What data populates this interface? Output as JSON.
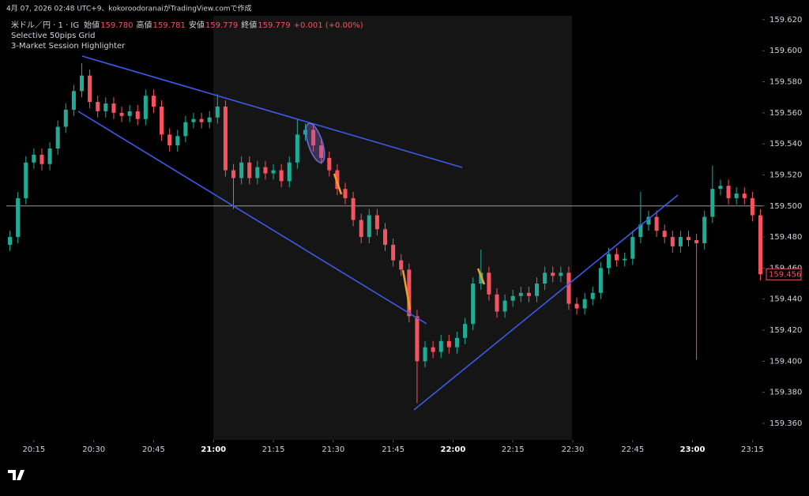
{
  "header": {
    "caption": "4月 07, 2026 02:48 UTC+9、kokoroodoranaiがTradingView.comで作成"
  },
  "legend": {
    "symbol": "米ドル／円 · 1 · IG",
    "ohlc": [
      {
        "label": "始値",
        "value": "159.780"
      },
      {
        "label": "高値",
        "value": "159.781"
      },
      {
        "label": "安値",
        "value": "159.779"
      },
      {
        "label": "終値",
        "value": "159.779"
      }
    ],
    "change": "+0.001 (+0.00%)",
    "indicators": [
      "Selective 50pips Grid",
      "3-Market Session Highlighter"
    ]
  },
  "chart_data": {
    "type": "candlestick",
    "up_color": "#22ab94",
    "down_color": "#f7525f",
    "x": [
      9,
      11,
      13,
      15,
      17,
      19,
      21,
      23,
      25,
      27,
      29,
      31,
      33,
      35,
      37,
      39,
      41,
      43,
      45,
      47,
      49,
      51,
      53,
      55,
      57,
      59,
      61,
      63,
      65,
      67,
      69,
      71,
      73,
      75,
      77,
      79,
      81,
      83,
      85,
      87,
      89,
      91,
      93,
      95,
      97,
      99,
      101,
      103,
      105,
      107,
      109,
      111,
      113,
      115,
      117,
      119,
      121,
      123,
      125,
      127,
      129,
      131,
      133,
      135,
      137,
      139,
      141,
      143,
      145,
      147,
      149,
      151,
      153,
      155,
      157,
      159,
      161,
      163,
      165,
      167,
      169,
      171,
      173,
      175,
      177,
      179,
      181,
      183,
      185,
      187,
      189,
      191,
      193,
      195,
      197
    ],
    "open": [
      159.475,
      159.48,
      159.505,
      159.528,
      159.533,
      159.527,
      159.537,
      159.551,
      159.562,
      159.574,
      159.584,
      159.567,
      159.561,
      159.566,
      159.56,
      159.558,
      159.561,
      159.556,
      159.571,
      159.564,
      159.546,
      159.539,
      159.545,
      159.554,
      159.556,
      159.554,
      159.557,
      159.564,
      159.523,
      159.518,
      159.528,
      159.518,
      159.525,
      159.521,
      159.523,
      159.516,
      159.528,
      159.546,
      159.549,
      159.539,
      159.531,
      159.523,
      159.511,
      159.505,
      159.491,
      159.48,
      159.494,
      159.485,
      159.475,
      159.465,
      159.459,
      159.429,
      159.4,
      159.409,
      159.406,
      159.413,
      159.409,
      159.415,
      159.424,
      159.45,
      159.457,
      159.443,
      159.432,
      159.439,
      159.442,
      159.444,
      159.442,
      159.45,
      159.457,
      159.455,
      159.457,
      159.437,
      159.434,
      159.44,
      159.444,
      159.46,
      159.469,
      159.465,
      159.466,
      159.48,
      159.488,
      159.493,
      159.484,
      159.48,
      159.474,
      159.48,
      159.478,
      159.476,
      159.493,
      159.511,
      159.513,
      159.505,
      159.508,
      159.505,
      159.494
    ],
    "high": [
      159.484,
      159.509,
      159.532,
      159.537,
      159.537,
      159.541,
      159.555,
      159.566,
      159.578,
      159.592,
      159.588,
      159.571,
      159.57,
      159.57,
      159.564,
      159.565,
      159.565,
      159.575,
      159.575,
      159.568,
      159.55,
      159.549,
      159.558,
      159.56,
      159.56,
      159.561,
      159.572,
      159.568,
      159.527,
      159.532,
      159.532,
      159.529,
      159.529,
      159.527,
      159.527,
      159.532,
      159.556,
      159.553,
      159.553,
      159.543,
      159.535,
      159.527,
      159.515,
      159.509,
      159.495,
      159.498,
      159.498,
      159.489,
      159.479,
      159.469,
      159.463,
      159.433,
      159.413,
      159.413,
      159.417,
      159.417,
      159.419,
      159.428,
      159.454,
      159.472,
      159.461,
      159.447,
      159.443,
      159.446,
      159.448,
      159.448,
      159.454,
      159.461,
      159.461,
      159.461,
      159.461,
      159.441,
      159.444,
      159.448,
      159.464,
      159.473,
      159.473,
      159.47,
      159.484,
      159.509,
      159.497,
      159.497,
      159.488,
      159.484,
      159.484,
      159.484,
      159.482,
      159.497,
      159.526,
      159.517,
      159.517,
      159.512,
      159.512,
      159.509,
      159.498
    ],
    "low": [
      159.471,
      159.476,
      159.501,
      159.524,
      159.523,
      159.523,
      159.533,
      159.547,
      159.558,
      159.57,
      159.563,
      159.557,
      159.557,
      159.556,
      159.554,
      159.554,
      159.552,
      159.552,
      159.56,
      159.542,
      159.535,
      159.535,
      159.541,
      159.55,
      159.55,
      159.55,
      159.553,
      159.519,
      159.498,
      159.514,
      159.514,
      159.514,
      159.517,
      159.517,
      159.512,
      159.512,
      159.524,
      159.542,
      159.535,
      159.527,
      159.519,
      159.507,
      159.501,
      159.487,
      159.476,
      159.476,
      159.481,
      159.471,
      159.461,
      159.455,
      159.425,
      159.373,
      159.396,
      159.402,
      159.402,
      159.405,
      159.405,
      159.411,
      159.42,
      159.446,
      159.439,
      159.428,
      159.428,
      159.435,
      159.438,
      159.438,
      159.438,
      159.446,
      159.451,
      159.451,
      159.433,
      159.43,
      159.43,
      159.436,
      159.44,
      159.456,
      159.461,
      159.461,
      159.462,
      159.476,
      159.484,
      159.48,
      159.476,
      159.47,
      159.47,
      159.474,
      159.401,
      159.472,
      159.489,
      159.507,
      159.501,
      159.501,
      159.501,
      159.49,
      159.452
    ],
    "close": [
      159.48,
      159.505,
      159.528,
      159.533,
      159.527,
      159.537,
      159.551,
      159.562,
      159.574,
      159.584,
      159.567,
      159.561,
      159.566,
      159.56,
      159.558,
      159.561,
      159.556,
      159.571,
      159.564,
      159.546,
      159.539,
      159.545,
      159.554,
      159.556,
      159.554,
      159.557,
      159.564,
      159.523,
      159.518,
      159.528,
      159.518,
      159.525,
      159.521,
      159.523,
      159.516,
      159.528,
      159.546,
      159.549,
      159.539,
      159.531,
      159.523,
      159.511,
      159.505,
      159.491,
      159.48,
      159.494,
      159.485,
      159.475,
      159.465,
      159.459,
      159.429,
      159.4,
      159.409,
      159.406,
      159.413,
      159.409,
      159.415,
      159.424,
      159.45,
      159.457,
      159.443,
      159.432,
      159.439,
      159.442,
      159.444,
      159.442,
      159.45,
      159.457,
      159.455,
      159.457,
      159.437,
      159.434,
      159.44,
      159.444,
      159.46,
      159.469,
      159.465,
      159.466,
      159.48,
      159.488,
      159.493,
      159.484,
      159.48,
      159.474,
      159.48,
      159.478,
      159.476,
      159.493,
      159.511,
      159.513,
      159.505,
      159.508,
      159.505,
      159.494,
      159.456
    ],
    "xlim": [
      8.1,
      197.5
    ],
    "ylim": [
      159.3493,
      159.6225
    ],
    "xticks": [
      {
        "value": 15,
        "label": "20:15"
      },
      {
        "value": 30,
        "label": "20:30"
      },
      {
        "value": 45,
        "label": "20:45"
      },
      {
        "value": 60,
        "label": "21:00"
      },
      {
        "value": 75,
        "label": "21:15"
      },
      {
        "value": 90,
        "label": "21:30"
      },
      {
        "value": 105,
        "label": "21:45"
      },
      {
        "value": 120,
        "label": "22:00"
      },
      {
        "value": 135,
        "label": "22:15"
      },
      {
        "value": 150,
        "label": "22:30"
      },
      {
        "value": 165,
        "label": "22:45"
      },
      {
        "value": 180,
        "label": "23:00"
      },
      {
        "value": 195,
        "label": "23:15"
      }
    ],
    "yticks": [
      {
        "value": 159.62,
        "label": "159.620"
      },
      {
        "value": 159.6,
        "label": "159.600"
      },
      {
        "value": 159.58,
        "label": "159.580"
      },
      {
        "value": 159.56,
        "label": "159.560"
      },
      {
        "value": 159.54,
        "label": "159.540"
      },
      {
        "value": 159.52,
        "label": "159.520"
      },
      {
        "value": 159.5,
        "label": "159.500"
      },
      {
        "value": 159.48,
        "label": "159.480"
      },
      {
        "value": 159.46,
        "label": "159.460"
      },
      {
        "value": 159.44,
        "label": "159.440"
      },
      {
        "value": 159.42,
        "label": "159.420"
      },
      {
        "value": 159.4,
        "label": "159.400"
      },
      {
        "value": 159.38,
        "label": "159.380"
      },
      {
        "value": 159.36,
        "label": "159.360"
      }
    ],
    "hline": 159.5,
    "hline_color": "#9a9a9a",
    "last_price": {
      "value": 159.456,
      "label": "159.456"
    },
    "grid": false
  }
}
